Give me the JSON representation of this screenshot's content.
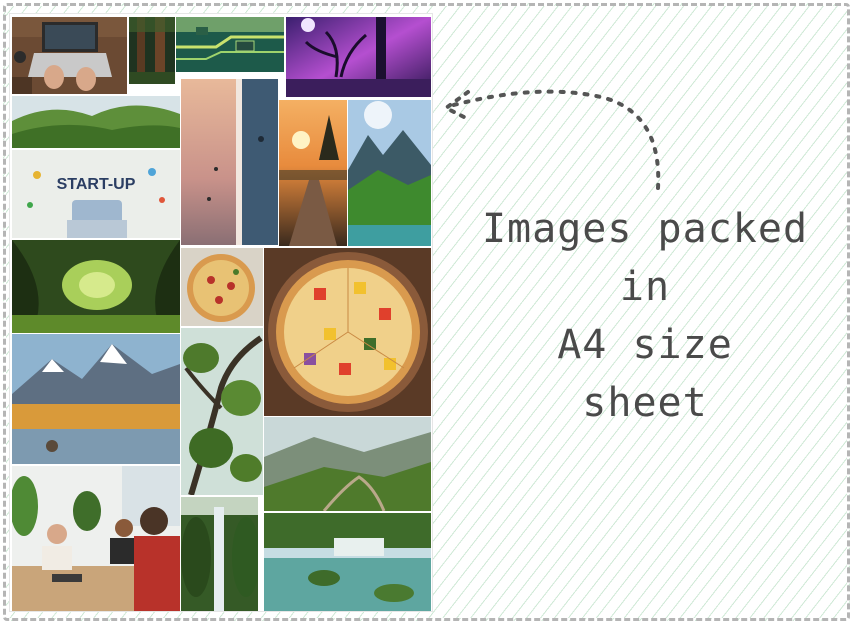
{
  "caption": {
    "lines": [
      "Images packed",
      "in",
      "A4 size",
      "sheet"
    ]
  },
  "photos": {
    "laptop": "laptop-photo",
    "forest_trunk": "forest-photo",
    "circuit": "circuit-board-photo",
    "purple_tree": "purple-tree-photo",
    "green_hills": "green-hills-photo",
    "beach": "beach-photo",
    "sunset_path": "sunset-path-photo",
    "mountain_lake": "mountain-lake-photo",
    "startup": {
      "text": "START-UP"
    },
    "forest_tunnel": "forest-tunnel-photo",
    "small_pizza": "small-pizza-photo",
    "big_pizza": "big-pizza-photo",
    "snow_mountain": "snow-mountain-photo",
    "tree_canopy": "tree-canopy-photo",
    "mountain_trail": "mountain-trail-photo",
    "meeting": "meeting-photo",
    "waterfall": "waterfall-photo",
    "lagoon": "lagoon-photo"
  },
  "colors": {
    "border": "#b5b5b5",
    "stripes": "#cfe9d6",
    "caption_text": "#4a4a4a",
    "arrow": "#555555"
  }
}
